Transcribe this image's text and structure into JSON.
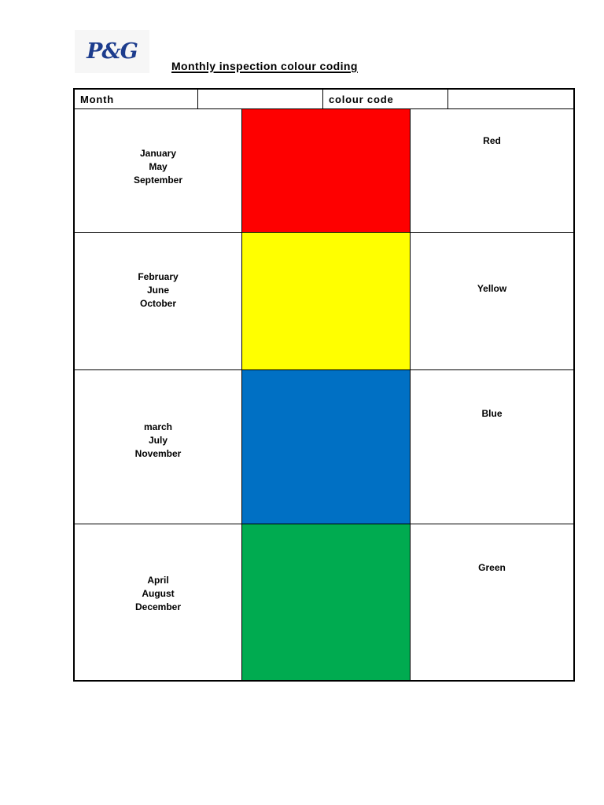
{
  "page": {
    "logo_text": "P&G",
    "logo_color": "#1c3c8d",
    "title": "Monthly inspection colour coding"
  },
  "table": {
    "header": {
      "cells": [
        "Month",
        "",
        "colour code",
        ""
      ]
    },
    "rows": [
      {
        "months": [
          "January",
          "May",
          "September"
        ],
        "color_name": "Red",
        "color_hex": "#fe0000"
      },
      {
        "months": [
          "February",
          "June",
          "October"
        ],
        "color_name": "Yellow",
        "color_hex": "#ffff00"
      },
      {
        "months": [
          "march",
          "July",
          "November"
        ],
        "color_name": "Blue",
        "color_hex": "#0070c4"
      },
      {
        "months": [
          "April",
          "August",
          "December"
        ],
        "color_name": "Green",
        "color_hex": "#00ab50"
      }
    ]
  }
}
